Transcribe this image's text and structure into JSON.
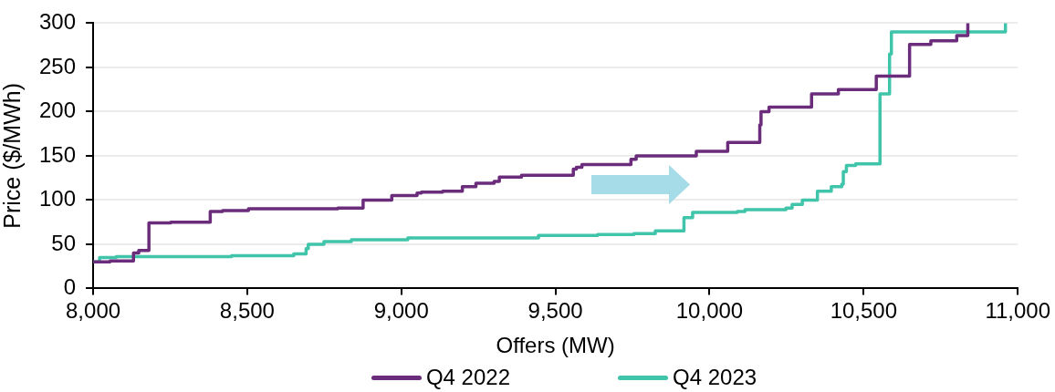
{
  "chart_data": {
    "type": "step",
    "xlabel": "Offers (MW)",
    "ylabel": "Price ($/MWh)",
    "xlim": [
      8000,
      11000
    ],
    "xticks": [
      {
        "value": 8000,
        "label": "8,000"
      },
      {
        "value": 8500,
        "label": "8,500"
      },
      {
        "value": 9000,
        "label": "9,000"
      },
      {
        "value": 9500,
        "label": "9,500"
      },
      {
        "value": 10000,
        "label": "10,000"
      },
      {
        "value": 10500,
        "label": "10,500"
      },
      {
        "value": 11000,
        "label": "11,000"
      }
    ],
    "ylim": [
      0,
      300
    ],
    "yticks": [
      0,
      50,
      100,
      150,
      200,
      250,
      300
    ],
    "grid": "y",
    "legend": "bottom",
    "series": [
      {
        "name": "Q4 2022",
        "color": "#6b2d7b",
        "x": [
          8000,
          8055,
          8131,
          8148,
          8181,
          8252,
          8380,
          8420,
          8504,
          8794,
          8876,
          8969,
          9051,
          9065,
          9134,
          9198,
          9242,
          9301,
          9318,
          9390,
          9558,
          9568,
          9586,
          9745,
          9762,
          9957,
          10059,
          10163,
          10167,
          10193,
          10331,
          10418,
          10541,
          10649,
          10718,
          10802,
          10838
        ],
        "values": [
          30,
          31,
          40,
          43,
          74,
          75,
          87,
          88,
          90,
          91,
          100,
          105,
          108,
          109,
          110,
          115,
          119,
          121,
          126,
          128,
          135,
          137,
          140,
          146,
          150,
          155,
          165,
          185,
          200,
          205,
          220,
          225,
          240,
          276,
          280,
          286,
          300
        ]
      },
      {
        "name": "Q4 2023",
        "color": "#40c4aa",
        "x": [
          8000,
          8021,
          8075,
          8449,
          8651,
          8691,
          8698,
          8749,
          8838,
          9021,
          9445,
          9637,
          9755,
          9824,
          9917,
          9945,
          10090,
          10115,
          10248,
          10268,
          10301,
          10350,
          10395,
          10429,
          10434,
          10444,
          10474,
          10553,
          10584,
          10590,
          10960
        ],
        "values": [
          30,
          35,
          36,
          37,
          39,
          45,
          50,
          53,
          55,
          57,
          60,
          61,
          62,
          65,
          80,
          86,
          87,
          89,
          91,
          95,
          100,
          110,
          115,
          118,
          132,
          139,
          141,
          220,
          265,
          290,
          300
        ]
      }
    ]
  }
}
